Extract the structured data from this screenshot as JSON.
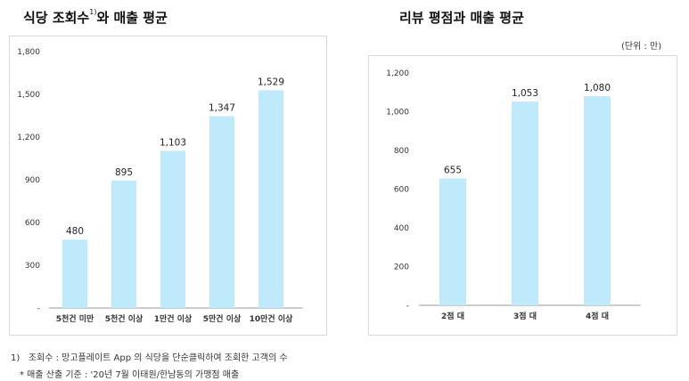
{
  "unit": "(단위 : 만)",
  "footnotes": {
    "note1_num": "1)",
    "note1_text": "조회수 : 망고플레이트 App 의 식당을 단순클릭하여 조회한 고객의 수",
    "note2": "* 매출 산출 기준 : '20년 7월 이태원/한남동의 가맹점 매출"
  },
  "colors": {
    "bar": "#bfeafb",
    "axis": "#999999"
  },
  "chart_data": [
    {
      "type": "bar",
      "title": "식당 조회수",
      "title_sup": "1)",
      "title_rest": "와 매출 평균",
      "categories": [
        "5천건 미만",
        "5천건 이상",
        "1만건 이상",
        "5만건 이상",
        "10만건 이상"
      ],
      "values": [
        480,
        895,
        1103,
        1347,
        1529
      ],
      "value_labels": [
        "480",
        "895",
        "1,103",
        "1,347",
        "1,529"
      ],
      "yticks": [
        0,
        300,
        600,
        900,
        1200,
        1500,
        1800
      ],
      "ytick_labels": [
        "-",
        "300",
        "600",
        "900",
        "1,200",
        "1,500",
        "1,800"
      ],
      "ylim": [
        0,
        1800
      ],
      "grid": false,
      "legend": "none"
    },
    {
      "type": "bar",
      "title": "리뷰 평점과 매출 평균",
      "categories": [
        "2점 대",
        "3점 대",
        "4점 대"
      ],
      "values": [
        655,
        1053,
        1080
      ],
      "value_labels": [
        "655",
        "1,053",
        "1,080"
      ],
      "yticks": [
        0,
        200,
        400,
        600,
        800,
        1000,
        1200
      ],
      "ytick_labels": [
        "-",
        "200",
        "400",
        "600",
        "800",
        "1,000",
        "1,200"
      ],
      "ylim": [
        0,
        1200
      ],
      "grid": false,
      "legend": "none"
    }
  ]
}
